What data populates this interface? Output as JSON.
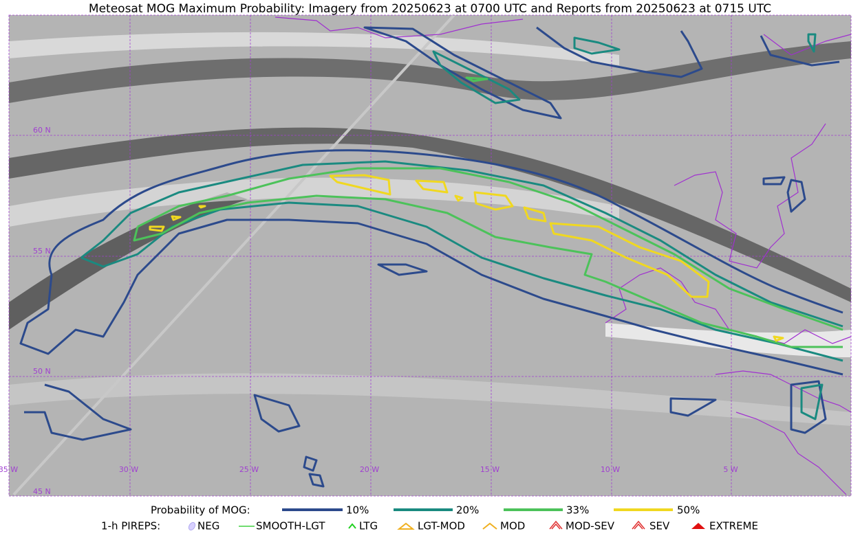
{
  "title": "Meteosat MOG Maximum Probability: Imagery from 20250623 at 0700 UTC and Reports from 20250623 at 0715 UTC",
  "latitude_labels": [
    "60 N",
    "55 N",
    "50 N",
    "45 N"
  ],
  "longitude_labels": [
    "35 W",
    "30 W",
    "25 W",
    "20 W",
    "15 W",
    "10 W",
    "5 W"
  ],
  "legend": {
    "probability": {
      "label": "Probability of MOG:",
      "items": [
        "10%",
        "20%",
        "33%",
        "50%"
      ]
    },
    "pireps": {
      "label": "1-h PIREPS:",
      "items": [
        "NEG",
        "SMOOTH-LGT",
        "LTG",
        "LGT-MOD",
        "MOD",
        "MOD-SEV",
        "SEV",
        "EXTREME"
      ]
    }
  }
}
